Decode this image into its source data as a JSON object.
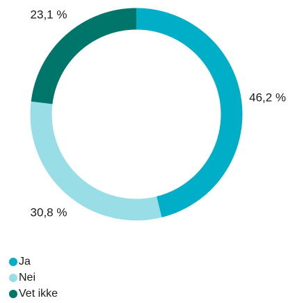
{
  "chart_data": {
    "type": "pie",
    "donut": true,
    "categories": [
      "Ja",
      "Nei",
      "Vet ikke"
    ],
    "values": [
      46.2,
      30.8,
      23.1
    ],
    "value_labels": [
      "46,2 %",
      "30,8 %",
      "23,1 %"
    ],
    "colors": [
      "#00AEC7",
      "#99DDE6",
      "#00756A"
    ],
    "start_angle": "top",
    "direction": "clockwise",
    "legend_position": "bottom-left"
  },
  "legend": {
    "items": [
      {
        "label": "Ja",
        "color": "#00AEC7"
      },
      {
        "label": "Nei",
        "color": "#99DDE6"
      },
      {
        "label": "Vet ikke",
        "color": "#00756A"
      }
    ]
  }
}
